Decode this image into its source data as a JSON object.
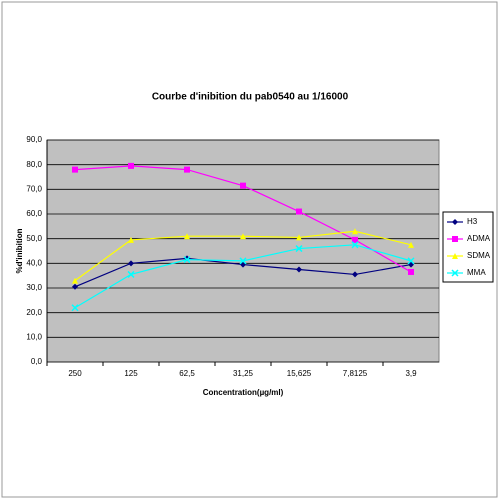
{
  "chart_data": {
    "type": "line",
    "title": "Courbe d'inibition du pab0540 au 1/16000",
    "x_label": "Concentration(µg/ml)",
    "y_label": "%d'inibition",
    "categories": [
      "250",
      "125",
      "62,5",
      "31,25",
      "15,625",
      "7,8125",
      "3,9"
    ],
    "series": [
      {
        "name": "H3",
        "color": "#000080",
        "marker": "diamond",
        "values": [
          30.5,
          40,
          42,
          39.5,
          37.5,
          35.5,
          39.5
        ]
      },
      {
        "name": "ADMA",
        "color": "#ff00ff",
        "marker": "square",
        "values": [
          78,
          79.5,
          78,
          71.5,
          61,
          49.5,
          36.5
        ]
      },
      {
        "name": "SDMA",
        "color": "#ffff00",
        "marker": "triangle",
        "values": [
          33,
          49.5,
          51,
          51,
          50.5,
          53,
          47.5
        ]
      },
      {
        "name": "MMA",
        "color": "#00ffff",
        "marker": "x",
        "values": [
          22,
          35.5,
          41.5,
          41,
          46,
          47.5,
          41
        ]
      }
    ],
    "ylim": [
      0,
      90
    ],
    "yticks": [
      {
        "value": 0,
        "label": "0,0"
      },
      {
        "value": 10,
        "label": "10,0"
      },
      {
        "value": 20,
        "label": "20,0"
      },
      {
        "value": 30,
        "label": "30,0"
      },
      {
        "value": 40,
        "label": "40,0"
      },
      {
        "value": 50,
        "label": "50,0"
      },
      {
        "value": 60,
        "label": "60,0"
      },
      {
        "value": 70,
        "label": "70,0"
      },
      {
        "value": 80,
        "label": "80,0"
      },
      {
        "value": 90,
        "label": "90,0"
      }
    ],
    "grid": true,
    "legend": "right"
  }
}
